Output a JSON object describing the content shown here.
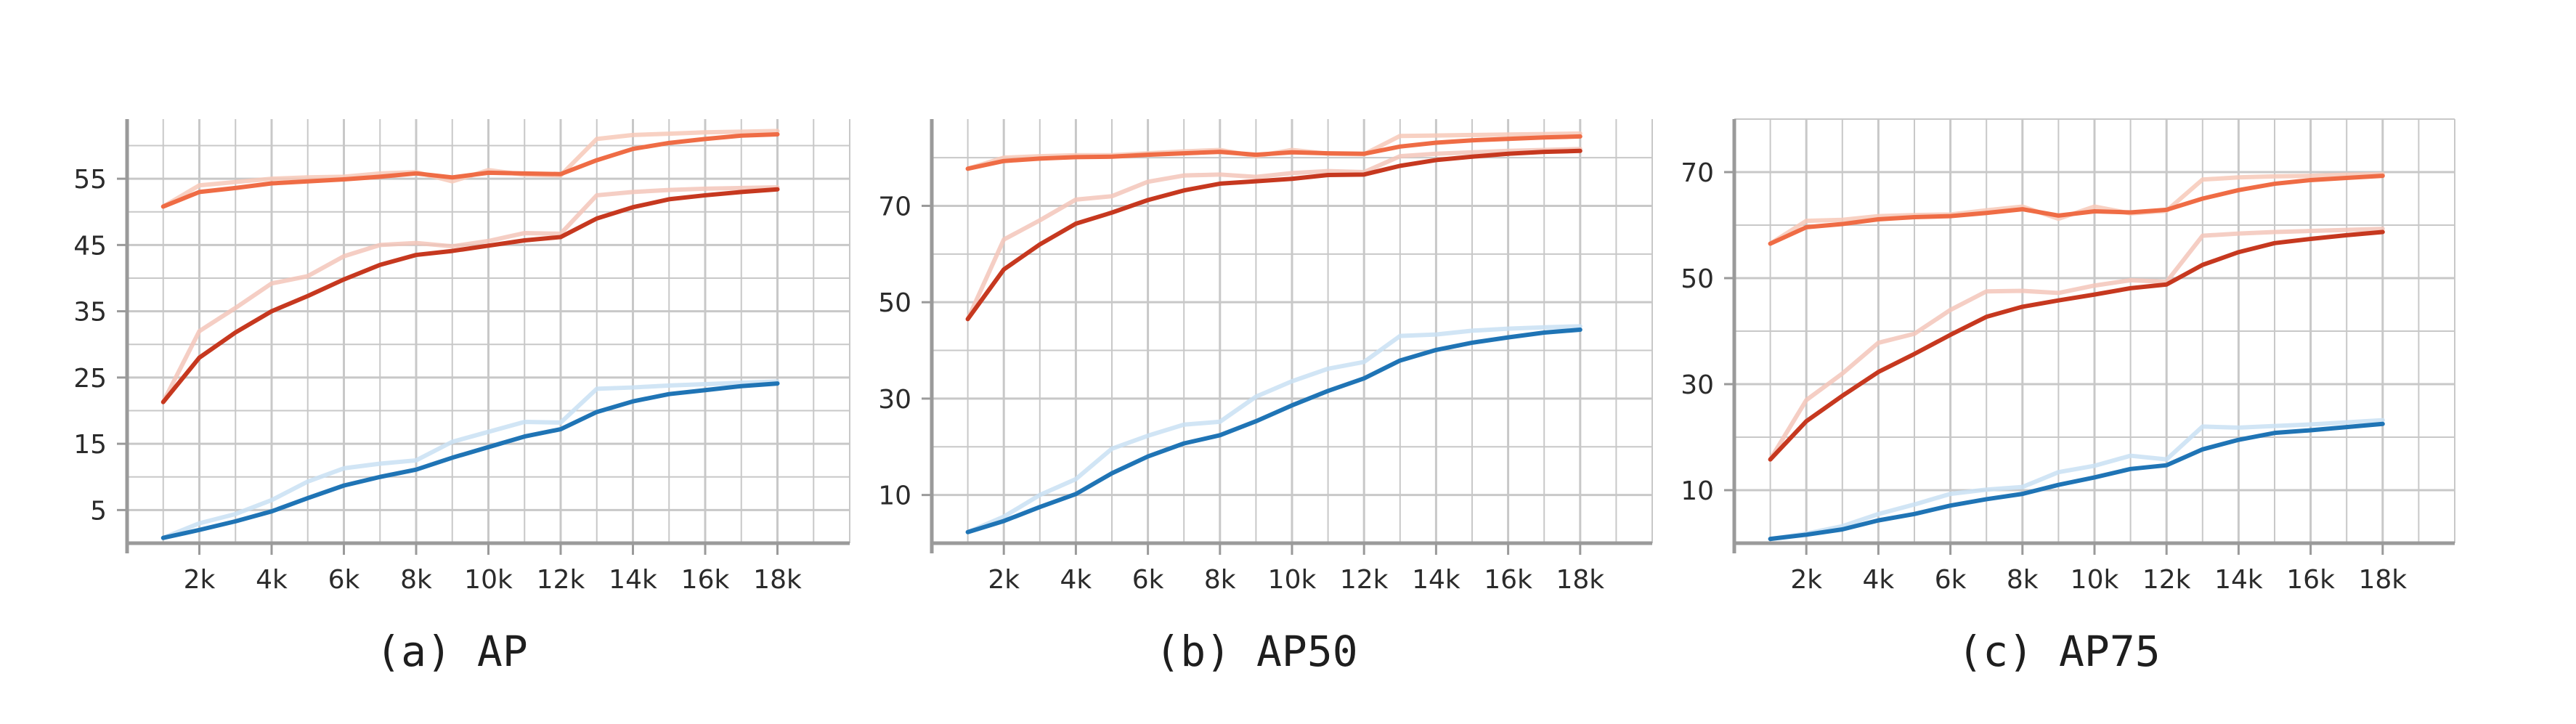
{
  "colors": {
    "orange": "#ef6c45",
    "red": "#c6381f",
    "blue": "#1f74b5",
    "orange_raw": "#f7c9b8",
    "red_raw": "#f3c6ba",
    "blue_raw": "#c9e1f3",
    "grid": "#c8c8c8",
    "axis": "#9a9a9a"
  },
  "chart_data": [
    {
      "type": "line",
      "caption": "(a) AP",
      "x": [
        1000,
        2000,
        3000,
        4000,
        5000,
        6000,
        7000,
        8000,
        9000,
        10000,
        11000,
        12000,
        13000,
        14000,
        15000,
        16000,
        17000,
        18000
      ],
      "xticks": [
        2000,
        4000,
        6000,
        8000,
        10000,
        12000,
        14000,
        16000,
        18000
      ],
      "xtick_labels": [
        "2k",
        "4k",
        "6k",
        "8k",
        "10k",
        "12k",
        "14k",
        "16k",
        "18k"
      ],
      "xlim": [
        0,
        20000
      ],
      "yticks": [
        5,
        15,
        25,
        35,
        45,
        55
      ],
      "ylim": [
        0,
        64
      ],
      "series": [
        {
          "color_key": "orange",
          "values": [
            50.8,
            53.0,
            53.6,
            54.3,
            54.6,
            54.9,
            55.3,
            55.8,
            55.2,
            55.9,
            55.8,
            55.7,
            57.8,
            59.5,
            60.4,
            61.0,
            61.5,
            61.7
          ],
          "raw": [
            50.8,
            54.0,
            54.5,
            55.0,
            55.2,
            55.3,
            55.8,
            56.0,
            54.6,
            56.3,
            55.6,
            55.5,
            61.0,
            61.6,
            61.8,
            62.0,
            62.1,
            62.2
          ]
        },
        {
          "color_key": "red",
          "values": [
            21.3,
            28.0,
            31.8,
            35.0,
            37.3,
            39.8,
            42.0,
            43.5,
            44.1,
            44.9,
            45.7,
            46.2,
            49.0,
            50.7,
            51.9,
            52.5,
            53.0,
            53.4
          ],
          "raw": [
            21.3,
            32.0,
            35.5,
            39.2,
            40.3,
            43.3,
            45.0,
            45.3,
            44.8,
            45.6,
            46.8,
            46.7,
            52.5,
            53.0,
            53.3,
            53.5,
            53.6,
            53.7
          ]
        },
        {
          "color_key": "blue",
          "values": [
            0.8,
            2.0,
            3.3,
            4.8,
            6.8,
            8.7,
            10.0,
            11.1,
            12.9,
            14.5,
            16.1,
            17.2,
            19.8,
            21.4,
            22.5,
            23.1,
            23.7,
            24.1
          ],
          "raw": [
            0.8,
            3.0,
            4.4,
            6.5,
            9.3,
            11.3,
            12.0,
            12.5,
            15.3,
            16.8,
            18.3,
            18.2,
            23.3,
            23.5,
            23.8,
            24.0,
            24.2,
            24.4
          ]
        }
      ]
    },
    {
      "type": "line",
      "caption": "(b) AP50",
      "x": [
        1000,
        2000,
        3000,
        4000,
        5000,
        6000,
        7000,
        8000,
        9000,
        10000,
        11000,
        12000,
        13000,
        14000,
        15000,
        16000,
        17000,
        18000
      ],
      "xticks": [
        2000,
        4000,
        6000,
        8000,
        10000,
        12000,
        14000,
        16000,
        18000
      ],
      "xtick_labels": [
        "2k",
        "4k",
        "6k",
        "8k",
        "10k",
        "12k",
        "14k",
        "16k",
        "18k"
      ],
      "xlim": [
        0,
        20000
      ],
      "yticks": [
        10,
        30,
        50,
        70
      ],
      "ylim": [
        0,
        88
      ],
      "series": [
        {
          "color_key": "orange",
          "values": [
            77.7,
            79.3,
            79.8,
            80.1,
            80.2,
            80.6,
            80.9,
            81.2,
            80.6,
            81.1,
            80.9,
            80.8,
            82.3,
            83.1,
            83.6,
            83.9,
            84.2,
            84.4
          ],
          "raw": [
            77.7,
            80.0,
            80.3,
            80.5,
            80.5,
            80.9,
            81.3,
            81.6,
            80.3,
            81.6,
            80.8,
            80.7,
            84.5,
            84.6,
            84.7,
            84.8,
            84.9,
            85.0
          ]
        },
        {
          "color_key": "red",
          "values": [
            46.5,
            56.8,
            62.0,
            66.3,
            68.6,
            71.2,
            73.2,
            74.6,
            75.1,
            75.6,
            76.4,
            76.5,
            78.3,
            79.5,
            80.2,
            80.8,
            81.2,
            81.4
          ],
          "raw": [
            46.5,
            63.0,
            67.0,
            71.3,
            72.0,
            75.0,
            76.3,
            76.5,
            76.0,
            76.8,
            77.2,
            77.0,
            80.3,
            80.8,
            81.1,
            81.4,
            81.6,
            81.8
          ]
        },
        {
          "color_key": "blue",
          "values": [
            2.3,
            4.6,
            7.5,
            10.2,
            14.5,
            18.0,
            20.7,
            22.4,
            25.3,
            28.6,
            31.6,
            34.2,
            37.9,
            40.1,
            41.6,
            42.7,
            43.7,
            44.3
          ],
          "raw": [
            2.3,
            5.5,
            10.0,
            13.3,
            19.6,
            22.3,
            24.6,
            25.2,
            30.4,
            33.6,
            36.2,
            37.6,
            43.0,
            43.3,
            44.1,
            44.5,
            44.8,
            45.0
          ]
        }
      ]
    },
    {
      "type": "line",
      "caption": "(c) AP75",
      "x": [
        1000,
        2000,
        3000,
        4000,
        5000,
        6000,
        7000,
        8000,
        9000,
        10000,
        11000,
        12000,
        13000,
        14000,
        15000,
        16000,
        17000,
        18000
      ],
      "xticks": [
        2000,
        4000,
        6000,
        8000,
        10000,
        12000,
        14000,
        16000,
        18000
      ],
      "xtick_labels": [
        "2k",
        "4k",
        "6k",
        "8k",
        "10k",
        "12k",
        "14k",
        "16k",
        "18k"
      ],
      "xlim": [
        0,
        20000
      ],
      "yticks": [
        10,
        30,
        50,
        70
      ],
      "ylim": [
        0,
        80
      ],
      "series": [
        {
          "color_key": "orange",
          "values": [
            56.5,
            59.6,
            60.2,
            61.1,
            61.5,
            61.7,
            62.3,
            63.0,
            61.8,
            62.6,
            62.4,
            62.9,
            65.0,
            66.6,
            67.8,
            68.5,
            68.9,
            69.3
          ],
          "raw": [
            56.5,
            60.8,
            61.0,
            61.7,
            61.9,
            62.0,
            62.8,
            63.5,
            61.2,
            63.5,
            62.2,
            62.7,
            68.6,
            69.0,
            69.2,
            69.3,
            69.5,
            69.6
          ]
        },
        {
          "color_key": "red",
          "values": [
            15.8,
            23.0,
            27.8,
            32.3,
            35.7,
            39.3,
            42.7,
            44.6,
            45.8,
            46.9,
            48.1,
            48.8,
            52.5,
            54.9,
            56.6,
            57.4,
            58.1,
            58.7
          ],
          "raw": [
            15.8,
            27.0,
            32.0,
            37.8,
            39.5,
            44.0,
            47.5,
            47.6,
            47.2,
            48.6,
            49.6,
            49.3,
            58.0,
            58.4,
            58.7,
            58.9,
            59.1,
            59.3
          ]
        },
        {
          "color_key": "blue",
          "values": [
            0.8,
            1.6,
            2.6,
            4.3,
            5.5,
            7.1,
            8.3,
            9.3,
            11.0,
            12.4,
            14.0,
            14.7,
            17.7,
            19.5,
            20.8,
            21.3,
            21.9,
            22.5
          ],
          "raw": [
            0.8,
            1.8,
            3.2,
            5.5,
            7.3,
            9.3,
            10.1,
            10.6,
            13.4,
            14.6,
            16.5,
            15.8,
            22.0,
            21.8,
            22.1,
            22.4,
            22.8,
            23.2
          ]
        }
      ]
    }
  ]
}
